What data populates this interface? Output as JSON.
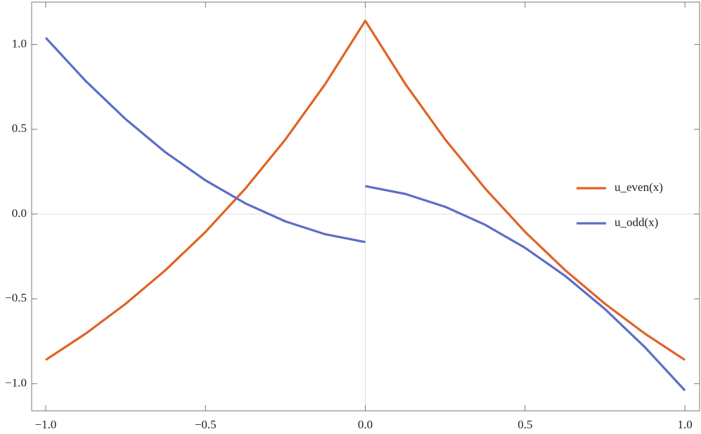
{
  "chart_data": {
    "type": "line",
    "x": [
      -1,
      -0.875,
      -0.75,
      -0.625,
      -0.5,
      -0.375,
      -0.25,
      -0.125,
      0,
      0,
      0,
      0.125,
      0.25,
      0.375,
      0.5,
      0.625,
      0.75,
      0.875,
      1
    ],
    "series": [
      {
        "name": "u_even(x)",
        "color": "#e16225",
        "values": [
          -0.86,
          -0.705,
          -0.529,
          -0.33,
          -0.105,
          0.151,
          0.44,
          0.768,
          1.14,
          1.14,
          1.14,
          0.768,
          0.44,
          0.151,
          -0.105,
          -0.33,
          -0.529,
          -0.705,
          -0.86
        ]
      },
      {
        "name": "u_odd(x)",
        "color": "#5d6dc7",
        "values": [
          1.04,
          0.785,
          0.56,
          0.364,
          0.199,
          0.063,
          -0.043,
          -0.119,
          -0.165,
          null,
          0.165,
          0.119,
          0.043,
          -0.063,
          -0.199,
          -0.364,
          -0.56,
          -0.785,
          -1.04
        ]
      }
    ],
    "xlim": [
      -1.044,
      1.046
    ],
    "ylim": [
      -1.16,
      1.25
    ],
    "xticks": [
      {
        "value": -1,
        "label": "−1.0"
      },
      {
        "value": -0.5,
        "label": "−0.5"
      },
      {
        "value": 0,
        "label": "0.0"
      },
      {
        "value": 0.5,
        "label": "0.5"
      },
      {
        "value": 1,
        "label": "1.0"
      }
    ],
    "yticks": [
      {
        "value": -1,
        "label": "−1.0"
      },
      {
        "value": -0.5,
        "label": "−0.5"
      },
      {
        "value": 0,
        "label": "0.0"
      },
      {
        "value": 0.5,
        "label": "0.5"
      },
      {
        "value": 1,
        "label": "1.0"
      }
    ],
    "origin_axes": true,
    "legend": "right"
  }
}
